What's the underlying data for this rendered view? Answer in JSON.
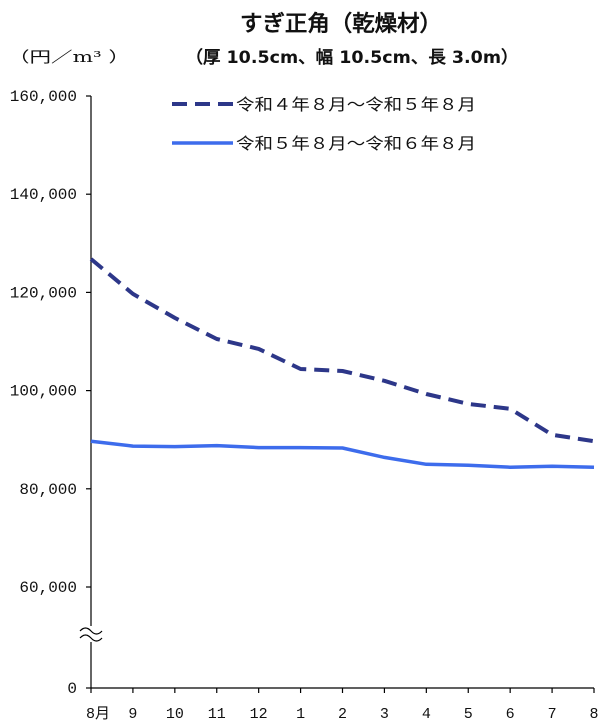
{
  "chart_data": {
    "type": "line",
    "title": "すぎ正角（乾燥材）",
    "subtitle": "（厚 10.5cm、幅 10.5cm、長 3.0m）",
    "ylabel": "（円／m³ ）",
    "xlabel": "",
    "categories": [
      "8月",
      "9",
      "10",
      "11",
      "12",
      "1",
      "2",
      "3",
      "4",
      "5",
      "6",
      "7",
      "8"
    ],
    "yticks": [
      0,
      60000,
      80000,
      100000,
      120000,
      140000,
      160000
    ],
    "ytick_labels": [
      "0",
      "60,000",
      "80,000",
      "100,000",
      "120,000",
      "140,000",
      "160,000"
    ],
    "ylim": [
      60000,
      160000
    ],
    "y_axis_break": [
      0,
      60000
    ],
    "grid": false,
    "legend": "top",
    "series": [
      {
        "name": "令和４年８月～令和５年８月",
        "line_style": "dashed",
        "color": "#2d3789",
        "values": [
          126800,
          119700,
          114800,
          110500,
          108500,
          104400,
          104000,
          102000,
          99300,
          97300,
          96300,
          91000,
          89700
        ]
      },
      {
        "name": "令和５年８月～令和６年８月",
        "line_style": "solid",
        "color": "#3d6cec",
        "values": [
          89700,
          88700,
          88600,
          88800,
          88400,
          88400,
          88300,
          86400,
          85000,
          84800,
          84400,
          84600,
          84400
        ]
      }
    ]
  }
}
